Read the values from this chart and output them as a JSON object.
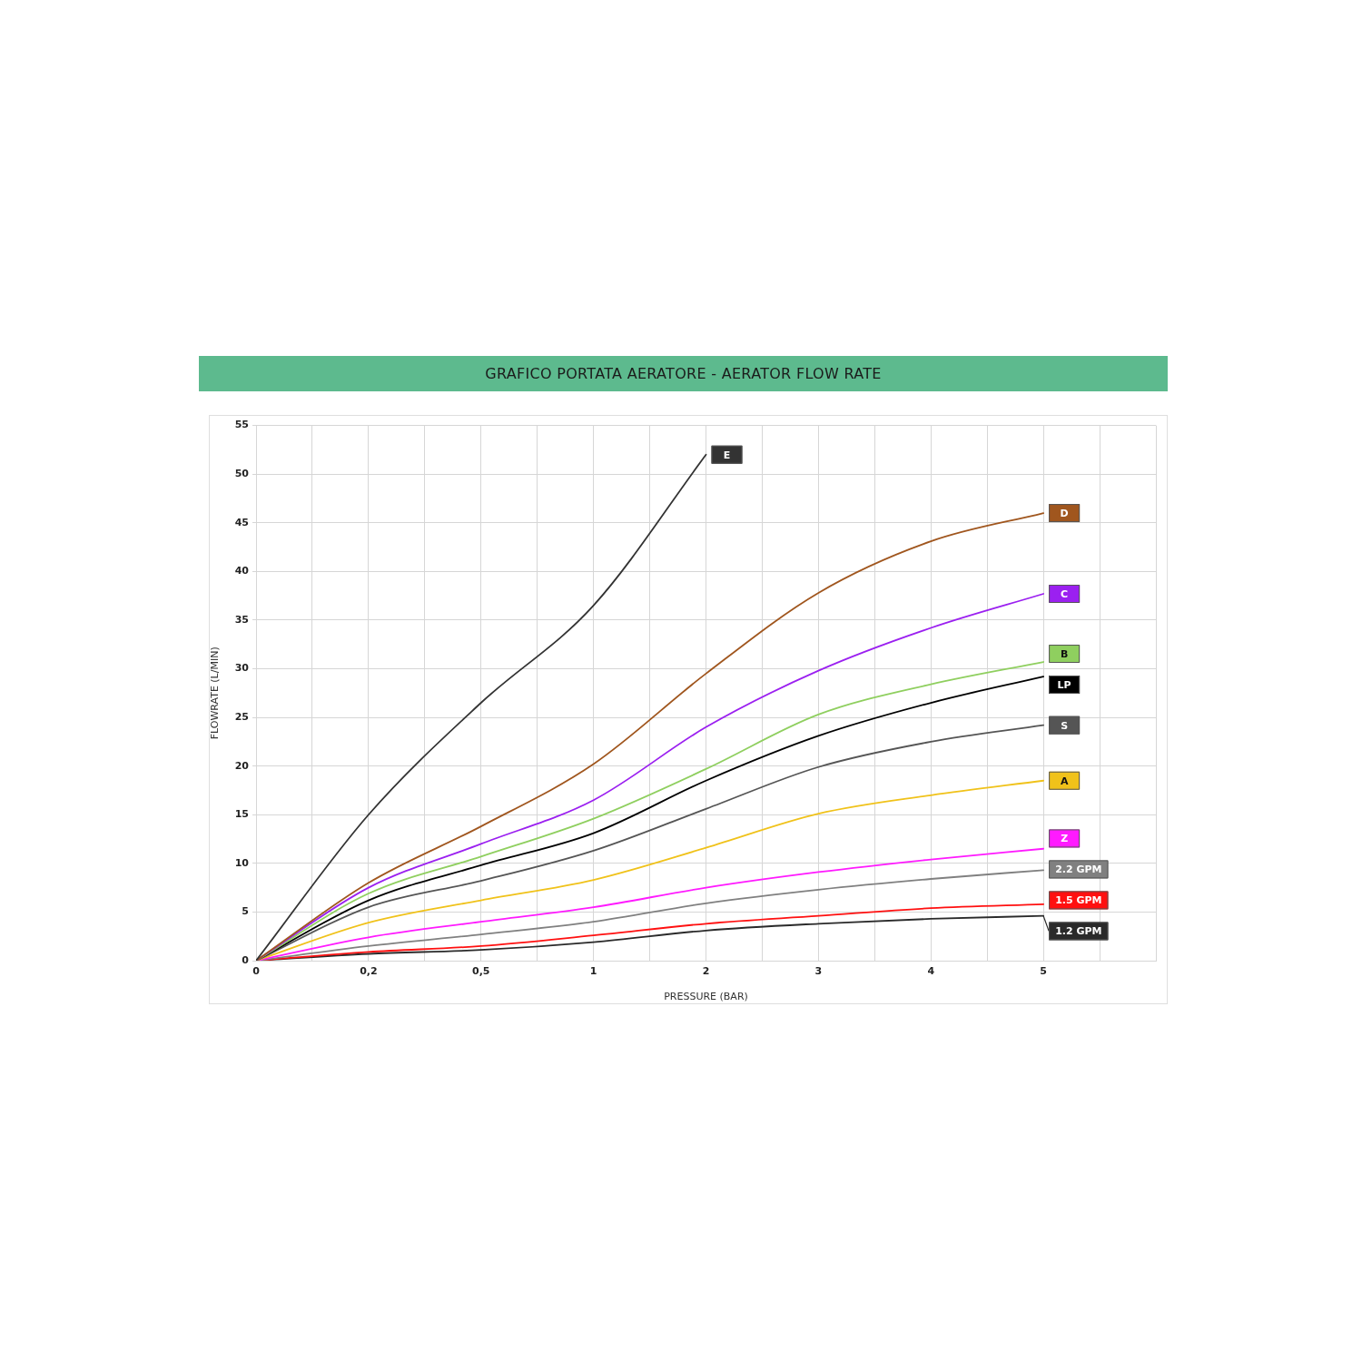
{
  "chart_data": {
    "type": "line",
    "title": "GRAFICO PORTATA AERATORE - AERATOR FLOW RATE",
    "xlabel": "PRESSURE (BAR)",
    "ylabel": "FLOWRATE (L/MIN)",
    "categories": [
      "0",
      "0,2",
      "0,5",
      "1",
      "2",
      "3",
      "4",
      "5"
    ],
    "series": [
      {
        "name": "E",
        "color": "#333333",
        "values": [
          0,
          15,
          26.5,
          36.5,
          52,
          null,
          null,
          null
        ]
      },
      {
        "name": "D",
        "color": "#a0561e",
        "values": [
          0,
          8,
          13.8,
          20.2,
          29.5,
          37.8,
          43.1,
          46
        ]
      },
      {
        "name": "C",
        "color": "#9b20f0",
        "values": [
          0,
          7.5,
          12,
          16.5,
          24,
          29.8,
          34.2,
          37.7
        ]
      },
      {
        "name": "B",
        "color": "#8fcf5f",
        "values": [
          0,
          6.9,
          10.7,
          14.6,
          19.7,
          25.3,
          28.4,
          30.7
        ]
      },
      {
        "name": "LP",
        "color": "#000000",
        "values": [
          0,
          6.2,
          9.8,
          13.1,
          18.5,
          23.1,
          26.5,
          29.2
        ]
      },
      {
        "name": "S",
        "color": "#555555",
        "values": [
          0,
          5.5,
          8.2,
          11.3,
          15.6,
          19.9,
          22.5,
          24.2
        ]
      },
      {
        "name": "A",
        "color": "#f0c21a",
        "values": [
          0,
          3.9,
          6.2,
          8.3,
          11.6,
          15.1,
          17,
          18.5
        ]
      },
      {
        "name": "Z",
        "color": "#ff1aff",
        "values": [
          0,
          2.4,
          4,
          5.5,
          7.5,
          9.1,
          10.4,
          11.5
        ]
      },
      {
        "name": "2.2 GPM",
        "color": "#808080",
        "values": [
          0,
          1.5,
          2.7,
          4,
          5.9,
          7.3,
          8.4,
          9.3
        ]
      },
      {
        "name": "1.5 GPM",
        "color": "#ff1010",
        "values": [
          0,
          0.9,
          1.5,
          2.6,
          3.8,
          4.6,
          5.4,
          5.8
        ]
      },
      {
        "name": "1.2 GPM",
        "color": "#2a2a2a",
        "values": [
          0,
          0.7,
          1.1,
          1.9,
          3.1,
          3.8,
          4.3,
          4.6
        ]
      }
    ],
    "ylim": [
      0,
      55
    ],
    "yticks": [
      0,
      5,
      10,
      15,
      20,
      25,
      30,
      35,
      40,
      45,
      50,
      55
    ],
    "grid": true,
    "marker": "none",
    "line_style": "solid"
  }
}
